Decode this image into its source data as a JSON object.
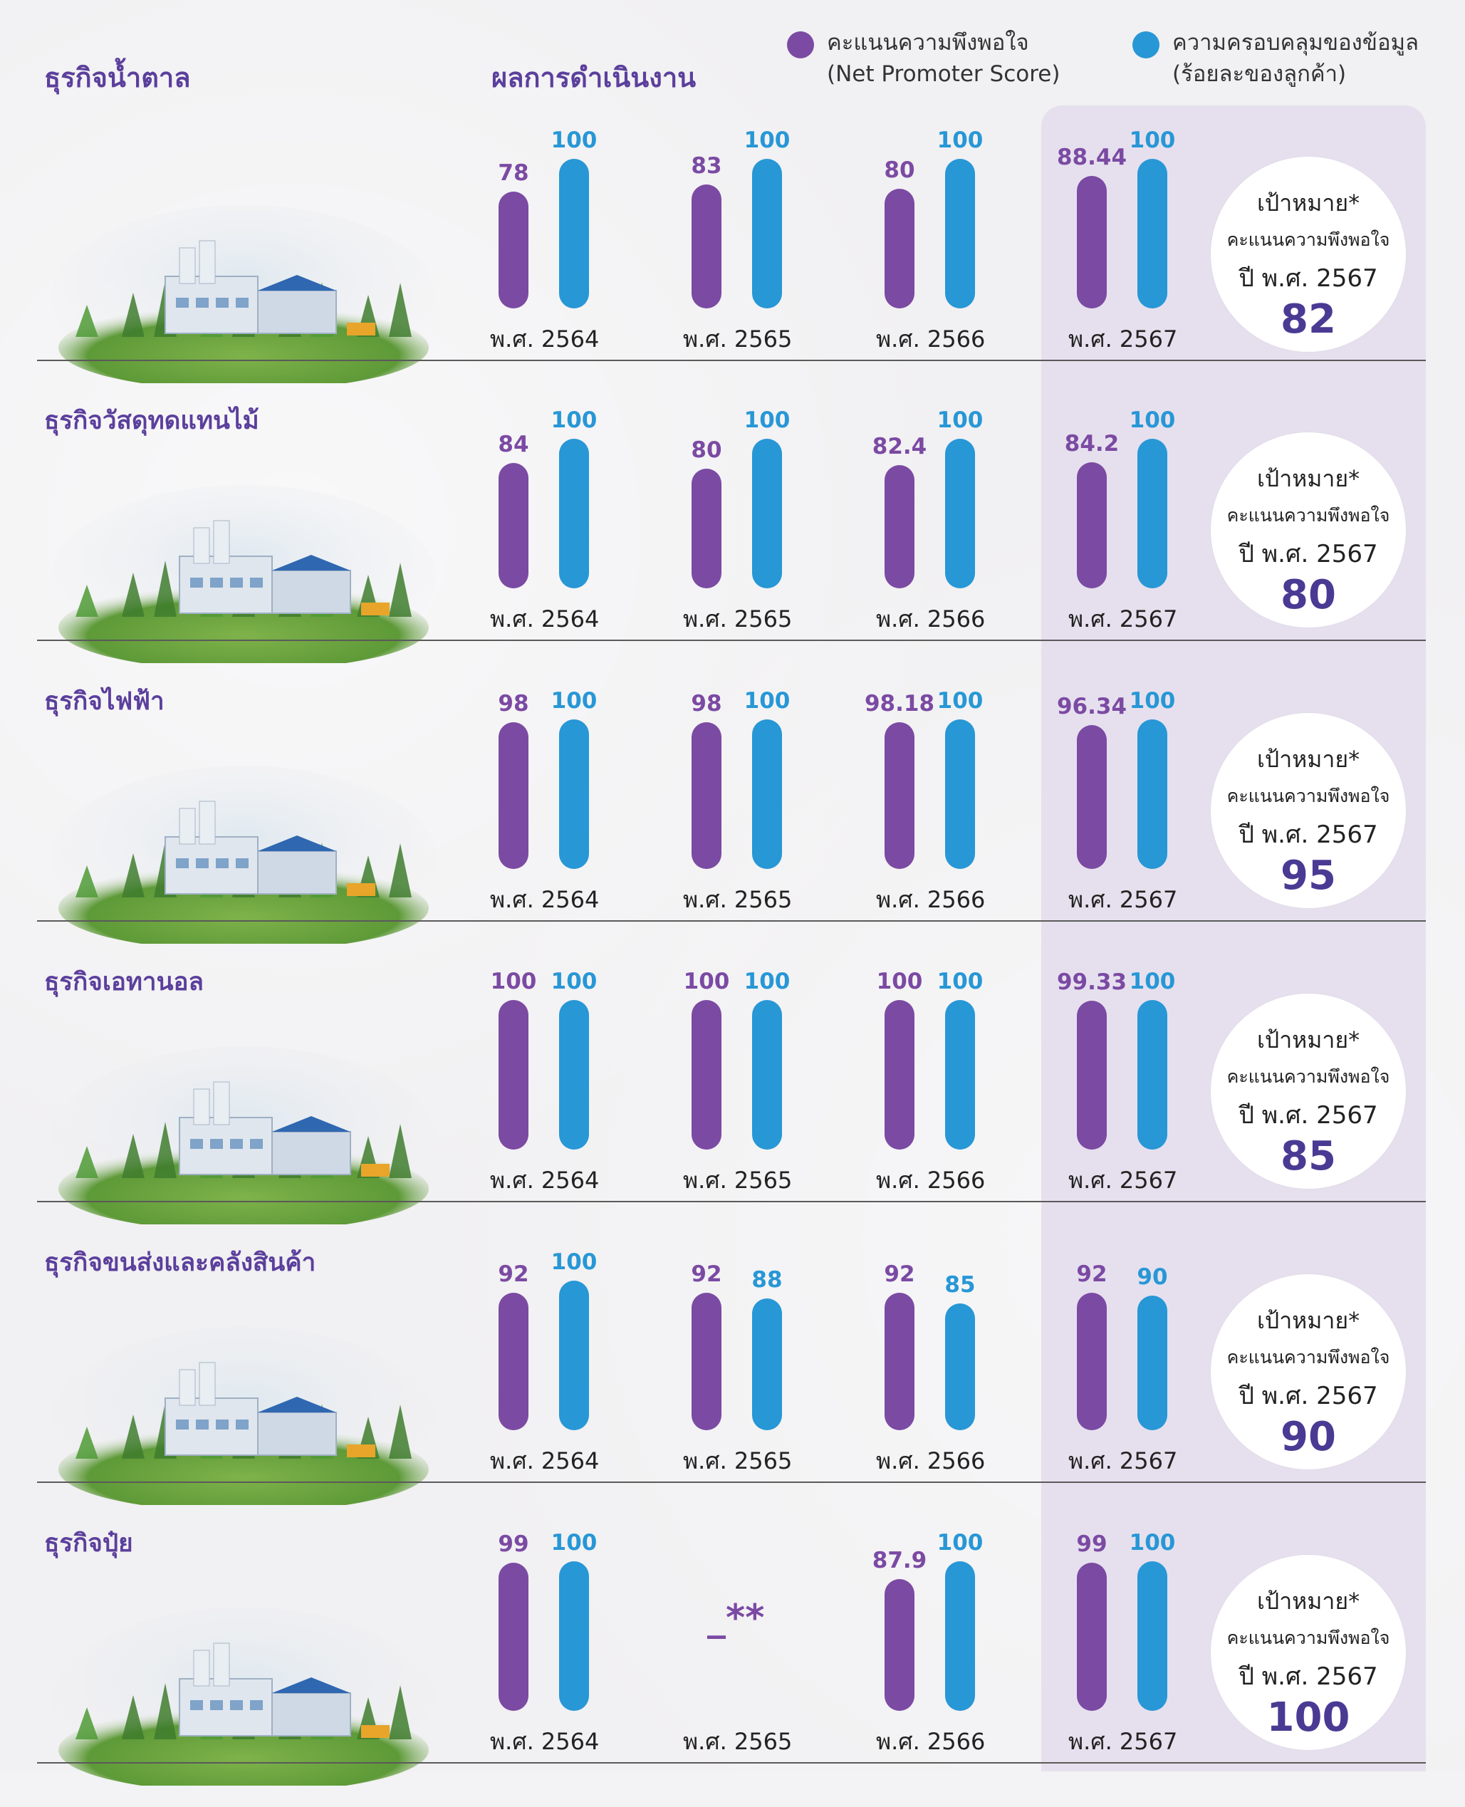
{
  "header": {
    "business_heading": "ธุรกิจน้ำตาล",
    "performance_heading": "ผลการดำเนินงาน"
  },
  "legend": [
    {
      "label_line1": "คะแนนความพึงพอใจ",
      "label_line2": "(Net Promoter Score)",
      "color": "#7b4aa3"
    },
    {
      "label_line1": "ความครอบคลุมของข้อมูล",
      "label_line2": "(ร้อยละของลูกค้า)",
      "color": "#2797d6"
    }
  ],
  "target_labels": {
    "title": "เป้าหมาย*",
    "subtitle": "คะแนนความพึงพอใจ",
    "year": "ปี พ.ศ. 2567"
  },
  "chart_data": {
    "type": "bar",
    "categories": [
      "พ.ศ. 2564",
      "พ.ศ. 2565",
      "พ.ศ. 2566",
      "พ.ศ. 2567"
    ],
    "ylim": [
      0,
      100
    ],
    "groups": [
      {
        "title": "",
        "target": "82",
        "series": [
          {
            "values": [
              78,
              83,
              80,
              88.44
            ],
            "labels": [
              "78",
              "83",
              "80",
              "88.44"
            ]
          },
          {
            "values": [
              100,
              100,
              100,
              100
            ],
            "labels": [
              "100",
              "100",
              "100",
              "100"
            ]
          }
        ]
      },
      {
        "title": "ธุรกิจวัสดุทดแทนไม้",
        "target": "80",
        "series": [
          {
            "values": [
              84,
              80,
              82.4,
              84.2
            ],
            "labels": [
              "84",
              "80",
              "82.4",
              "84.2"
            ]
          },
          {
            "values": [
              100,
              100,
              100,
              100
            ],
            "labels": [
              "100",
              "100",
              "100",
              "100"
            ]
          }
        ]
      },
      {
        "title": "ธุรกิจไฟฟ้า",
        "target": "95",
        "series": [
          {
            "values": [
              98,
              98,
              98.18,
              96.34
            ],
            "labels": [
              "98",
              "98",
              "98.18",
              "96.34"
            ]
          },
          {
            "values": [
              100,
              100,
              100,
              100
            ],
            "labels": [
              "100",
              "100",
              "100",
              "100"
            ]
          }
        ]
      },
      {
        "title": "ธุรกิจเอทานอล",
        "target": "85",
        "series": [
          {
            "values": [
              100,
              100,
              100,
              99.33
            ],
            "labels": [
              "100",
              "100",
              "100",
              "99.33"
            ]
          },
          {
            "values": [
              100,
              100,
              100,
              100
            ],
            "labels": [
              "100",
              "100",
              "100",
              "100"
            ]
          }
        ]
      },
      {
        "title": "ธุรกิจขนส่งและคลังสินค้า",
        "target": "90",
        "series": [
          {
            "values": [
              92,
              92,
              92,
              92
            ],
            "labels": [
              "92",
              "92",
              "92",
              "92"
            ]
          },
          {
            "values": [
              100,
              88,
              85,
              90
            ],
            "labels": [
              "100",
              "88",
              "85",
              "90"
            ]
          }
        ]
      },
      {
        "title": "ธุรกิจปุ๋ย",
        "target": "100",
        "missing_label": "_**",
        "series": [
          {
            "values": [
              99,
              null,
              87.9,
              99
            ],
            "labels": [
              "99",
              "",
              "87.9",
              "99"
            ]
          },
          {
            "values": [
              100,
              null,
              100,
              100
            ],
            "labels": [
              "100",
              "",
              "100",
              "100"
            ]
          }
        ]
      }
    ]
  }
}
